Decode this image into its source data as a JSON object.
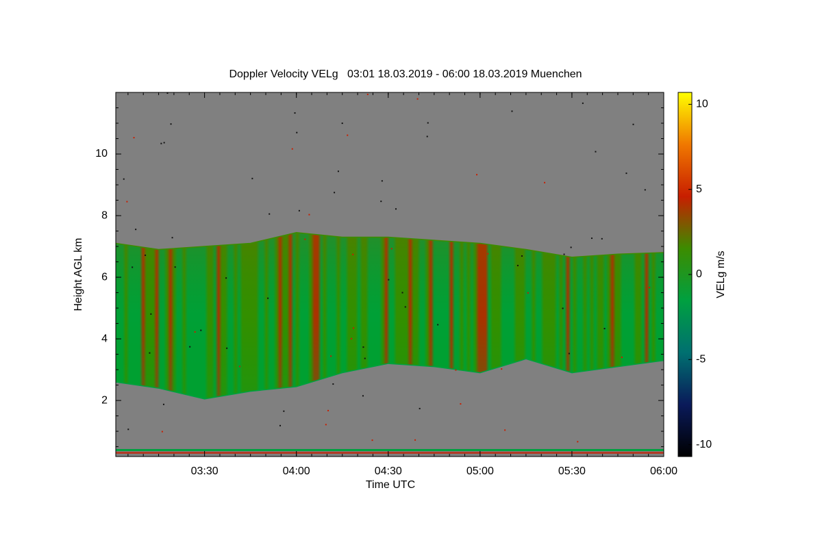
{
  "chart_data": {
    "type": "time-height",
    "title": "Doppler Velocity VELg   03:01 18.03.2019 - 06:00 18.03.2019 Muenchen",
    "xlabel": "Time UTC",
    "ylabel": "Height AGL km",
    "colorbar_label": "VELg m/s",
    "xlim": [
      "03:01",
      "06:00"
    ],
    "xticks": [
      "03:30",
      "04:00",
      "04:30",
      "05:00",
      "05:30",
      "06:00"
    ],
    "ylim": [
      0.18,
      12
    ],
    "yticks": [
      2,
      4,
      6,
      8,
      10
    ],
    "clim": [
      -10.7,
      10.7
    ],
    "cticks": [
      10,
      5,
      0,
      -5,
      -10
    ],
    "colormap": [
      "#000000",
      "#0a1a5a",
      "#007070",
      "#00a040",
      "#3c8c00",
      "#c81e00",
      "#f07800",
      "#ffff00"
    ],
    "background": "#808080",
    "echo": {
      "x": [
        "03:01",
        "03:15",
        "03:30",
        "03:45",
        "04:00",
        "04:15",
        "04:30",
        "04:45",
        "05:00",
        "05:15",
        "05:30",
        "05:45",
        "06:00"
      ],
      "top": [
        7.1,
        6.9,
        7.0,
        7.1,
        7.45,
        7.3,
        7.3,
        7.2,
        7.1,
        6.9,
        6.65,
        6.75,
        6.8
      ],
      "base": [
        2.6,
        2.4,
        2.05,
        2.3,
        2.45,
        2.9,
        3.2,
        3.1,
        2.9,
        3.35,
        2.9,
        3.1,
        3.3
      ]
    }
  }
}
